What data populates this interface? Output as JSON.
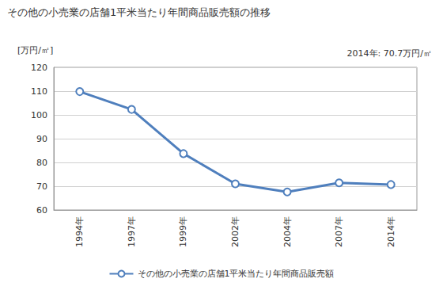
{
  "chart_data": {
    "type": "line",
    "title": "その他の小売業の店舗1平米当たり年間商品販売額の推移",
    "y_label": "[万円/㎡]",
    "annotation": "2014年: 70.7万円/㎡",
    "categories": [
      "1994年",
      "1997年",
      "1999年",
      "2002年",
      "2004年",
      "2007年",
      "2014年"
    ],
    "series": [
      {
        "name": "その他の小売業の店舗1平米当たり年間商品販売額",
        "color": "#4f7fbd",
        "marker": "circle",
        "values": [
          109.8,
          102.3,
          83.7,
          71.0,
          67.6,
          71.4,
          70.7
        ]
      }
    ],
    "ylim": [
      60,
      120
    ],
    "yticks": [
      60,
      70,
      80,
      90,
      100,
      110,
      120
    ],
    "grid": true,
    "legend": "bottom"
  }
}
